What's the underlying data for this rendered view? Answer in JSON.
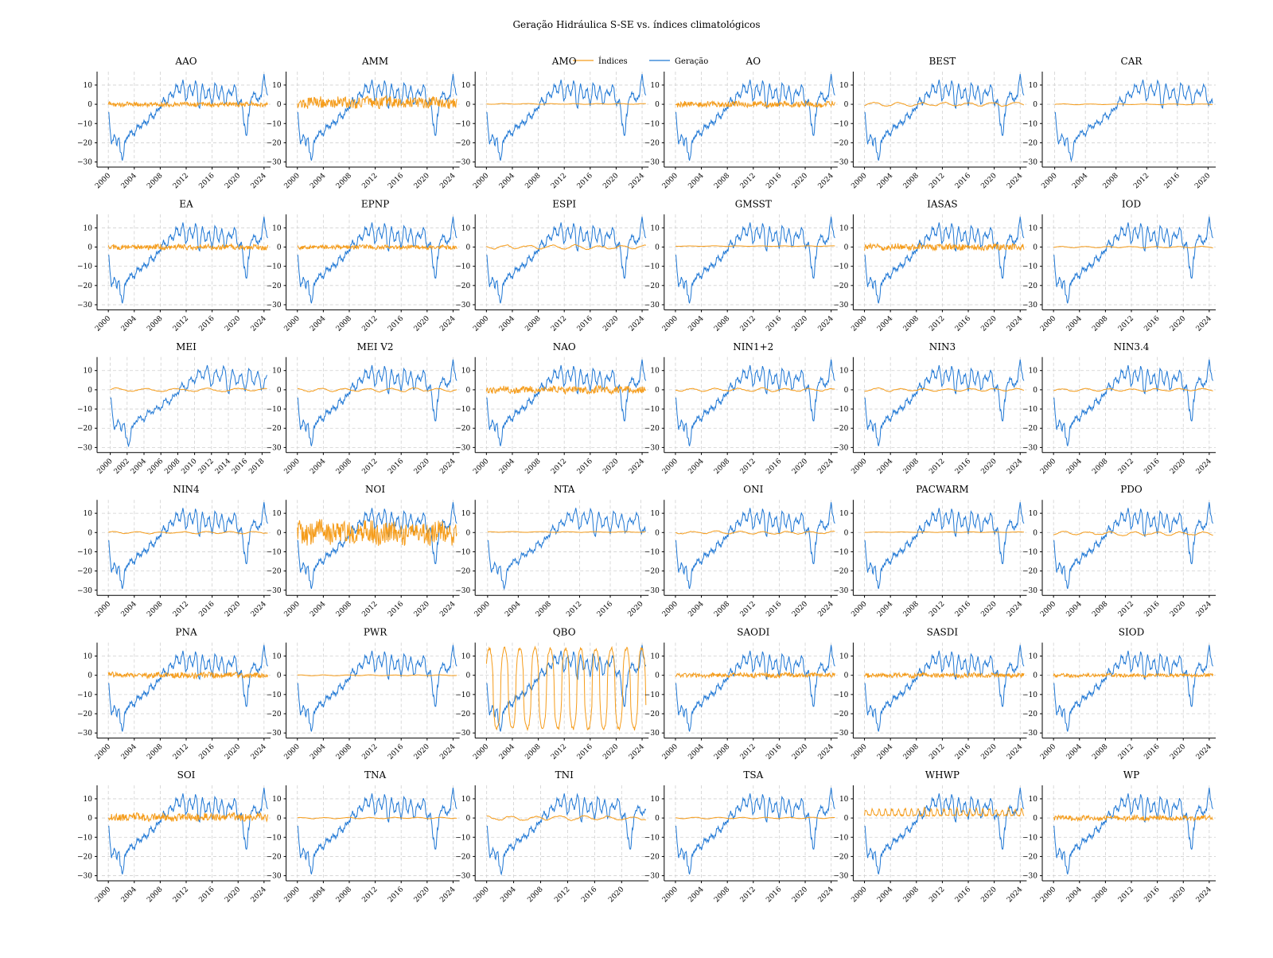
{
  "title": "Geração Hidráulica S-SE vs. índices climatológicos",
  "legend": [
    {
      "label": "Índices",
      "color": "#f59c1a"
    },
    {
      "label": "Geração",
      "color": "#1f77d4"
    }
  ],
  "colors": {
    "indices": "#f59c1a",
    "geracao": "#1f77d4",
    "grid": "#d0d0d0",
    "axis": "#000000"
  },
  "chart_data": {
    "type": "line",
    "layout": "grid 6x6",
    "yticks": [
      -30,
      -20,
      -10,
      0,
      10
    ],
    "ylim": [
      -31,
      17
    ],
    "grid": true,
    "legend_position": "top-center",
    "geracao_anchor": {
      "x": [
        2000.0,
        2000.5,
        2001.0,
        2001.3,
        2001.6,
        2001.9,
        2002.2,
        2002.6,
        2003.0,
        2003.5,
        2004.0,
        2004.5,
        2005.0,
        2005.5,
        2006.0,
        2006.5,
        2007.0,
        2007.5,
        2008.0,
        2008.5,
        2009.0,
        2009.5,
        2010.0,
        2010.5,
        2011.0,
        2011.5,
        2012.0,
        2012.5,
        2013.0,
        2013.5,
        2014.0,
        2014.5,
        2015.0,
        2015.5,
        2016.0,
        2016.5,
        2017.0,
        2017.5,
        2018.0,
        2018.5,
        2019.0,
        2019.5,
        2020.0,
        2020.5,
        2021.0,
        2021.3,
        2021.6,
        2022.0,
        2022.5,
        2023.0,
        2023.5,
        2024.0,
        2024.3,
        2024.6
      ],
      "y": [
        -4,
        -20,
        -16,
        -21,
        -17,
        -25,
        -29,
        -19,
        -17,
        -14,
        -16,
        -11,
        -12,
        -9,
        -10,
        -5,
        -7,
        -3,
        -2,
        3,
        0,
        6,
        4,
        10,
        6,
        12,
        2,
        10,
        5,
        12,
        -2,
        10,
        3,
        8,
        0,
        11,
        3,
        9,
        0,
        7,
        5,
        10,
        0,
        2,
        -11,
        -17,
        -6,
        3,
        6,
        2,
        4,
        15,
        8,
        4
      ]
    },
    "panels": [
      {
        "name": "AAO",
        "xlim": [
          1999,
          2025
        ],
        "xticks": [
          "2000",
          "2004",
          "2008",
          "2012",
          "2016",
          "2020",
          "2024"
        ],
        "index": {
          "style": "noise",
          "amplitude": 1.3,
          "mean": 0
        }
      },
      {
        "name": "AMM",
        "xlim": [
          1999,
          2025
        ],
        "xticks": [
          "2000",
          "2004",
          "2008",
          "2012",
          "2016",
          "2020",
          "2024"
        ],
        "index": {
          "style": "noise",
          "amplitude": 3.2,
          "mean": 1
        }
      },
      {
        "name": "AMO",
        "xlim": [
          1999,
          2025
        ],
        "xticks": [
          "2000",
          "2004",
          "2008",
          "2012",
          "2016",
          "2020",
          "2024"
        ],
        "index": {
          "style": "smooth",
          "amplitude": 0.3,
          "mean": 0.2
        }
      },
      {
        "name": "AO",
        "xlim": [
          1999,
          2025
        ],
        "xticks": [
          "2000",
          "2004",
          "2008",
          "2012",
          "2016",
          "2020",
          "2024"
        ],
        "index": {
          "style": "noise",
          "amplitude": 1.6,
          "mean": 0
        }
      },
      {
        "name": "BEST",
        "xlim": [
          1999,
          2025
        ],
        "xticks": [
          "2000",
          "2004",
          "2008",
          "2012",
          "2016",
          "2020",
          "2024"
        ],
        "index": {
          "style": "smooth",
          "amplitude": 1.4,
          "mean": 0
        }
      },
      {
        "name": "CAR",
        "xlim": [
          1999,
          2021
        ],
        "xticks": [
          "2000",
          "2004",
          "2008",
          "2012",
          "2016",
          "2020"
        ],
        "index": {
          "style": "smooth",
          "amplitude": 0.3,
          "mean": 0
        }
      },
      {
        "name": "EA",
        "xlim": [
          1999,
          2025
        ],
        "xticks": [
          "2000",
          "2004",
          "2008",
          "2012",
          "2016",
          "2020",
          "2024"
        ],
        "index": {
          "style": "noise",
          "amplitude": 1.5,
          "mean": 0
        }
      },
      {
        "name": "EPNP",
        "xlim": [
          1999,
          2025
        ],
        "xticks": [
          "2000",
          "2004",
          "2008",
          "2012",
          "2016",
          "2020",
          "2024"
        ],
        "index": {
          "style": "noise",
          "amplitude": 1.2,
          "mean": 0
        }
      },
      {
        "name": "ESPI",
        "xlim": [
          1999,
          2025
        ],
        "xticks": [
          "2000",
          "2004",
          "2008",
          "2012",
          "2016",
          "2020",
          "2024"
        ],
        "index": {
          "style": "smooth",
          "amplitude": 1.5,
          "mean": 0
        }
      },
      {
        "name": "GMSST",
        "xlim": [
          1999,
          2025
        ],
        "xticks": [
          "2000",
          "2004",
          "2008",
          "2012",
          "2016",
          "2020",
          "2024"
        ],
        "index": {
          "style": "smooth",
          "amplitude": 0.2,
          "mean": 0.5
        }
      },
      {
        "name": "IASAS",
        "xlim": [
          1999,
          2025
        ],
        "xticks": [
          "2000",
          "2004",
          "2008",
          "2012",
          "2016",
          "2020",
          "2024"
        ],
        "index": {
          "style": "noise",
          "amplitude": 1.8,
          "mean": 0
        }
      },
      {
        "name": "IOD",
        "xlim": [
          1999,
          2025
        ],
        "xticks": [
          "2000",
          "2004",
          "2008",
          "2012",
          "2016",
          "2020",
          "2024"
        ],
        "index": {
          "style": "smooth",
          "amplitude": 0.5,
          "mean": 0
        }
      },
      {
        "name": "MEI",
        "xlim": [
          1999,
          2019
        ],
        "xticks": [
          "2000",
          "2002",
          "2004",
          "2006",
          "2008",
          "2010",
          "2012",
          "2014",
          "2016",
          "2018"
        ],
        "index": {
          "style": "smooth",
          "amplitude": 1.2,
          "mean": 0
        }
      },
      {
        "name": "MEI V2",
        "xlim": [
          1999,
          2025
        ],
        "xticks": [
          "2000",
          "2004",
          "2008",
          "2012",
          "2016",
          "2020",
          "2024"
        ],
        "index": {
          "style": "smooth",
          "amplitude": 1.2,
          "mean": 0
        }
      },
      {
        "name": "NAO",
        "xlim": [
          1999,
          2025
        ],
        "xticks": [
          "2000",
          "2004",
          "2008",
          "2012",
          "2016",
          "2020",
          "2024"
        ],
        "index": {
          "style": "noise",
          "amplitude": 2.0,
          "mean": 0
        }
      },
      {
        "name": "NIN1+2",
        "xlim": [
          1999,
          2025
        ],
        "xticks": [
          "2000",
          "2004",
          "2008",
          "2012",
          "2016",
          "2020",
          "2024"
        ],
        "index": {
          "style": "smooth",
          "amplitude": 1.2,
          "mean": 0
        }
      },
      {
        "name": "NIN3",
        "xlim": [
          1999,
          2025
        ],
        "xticks": [
          "2000",
          "2004",
          "2008",
          "2012",
          "2016",
          "2020",
          "2024"
        ],
        "index": {
          "style": "smooth",
          "amplitude": 1.0,
          "mean": 0
        }
      },
      {
        "name": "NIN3.4",
        "xlim": [
          1999,
          2025
        ],
        "xticks": [
          "2000",
          "2004",
          "2008",
          "2012",
          "2016",
          "2020",
          "2024"
        ],
        "index": {
          "style": "smooth",
          "amplitude": 1.0,
          "mean": 0
        }
      },
      {
        "name": "NIN4",
        "xlim": [
          1999,
          2025
        ],
        "xticks": [
          "2000",
          "2004",
          "2008",
          "2012",
          "2016",
          "2020",
          "2024"
        ],
        "index": {
          "style": "smooth",
          "amplitude": 0.8,
          "mean": 0
        }
      },
      {
        "name": "NOI",
        "xlim": [
          1999,
          2025
        ],
        "xticks": [
          "2000",
          "2004",
          "2008",
          "2012",
          "2016",
          "2020",
          "2024"
        ],
        "index": {
          "style": "noise",
          "amplitude": 6.5,
          "mean": 0
        }
      },
      {
        "name": "NTA",
        "xlim": [
          1999,
          2021
        ],
        "xticks": [
          "2000",
          "2004",
          "2008",
          "2012",
          "2016",
          "2020"
        ],
        "index": {
          "style": "smooth",
          "amplitude": 0.3,
          "mean": 0.3
        }
      },
      {
        "name": "ONI",
        "xlim": [
          1999,
          2025
        ],
        "xticks": [
          "2000",
          "2004",
          "2008",
          "2012",
          "2016",
          "2020",
          "2024"
        ],
        "index": {
          "style": "smooth",
          "amplitude": 1.0,
          "mean": 0
        }
      },
      {
        "name": "PACWARM",
        "xlim": [
          1999,
          2025
        ],
        "xticks": [
          "2000",
          "2004",
          "2008",
          "2012",
          "2016",
          "2020",
          "2024"
        ],
        "index": {
          "style": "smooth",
          "amplitude": 0.2,
          "mean": 0.2
        }
      },
      {
        "name": "PDO",
        "xlim": [
          1999,
          2025
        ],
        "xticks": [
          "2000",
          "2004",
          "2008",
          "2012",
          "2016",
          "2020",
          "2024"
        ],
        "index": {
          "style": "smooth",
          "amplitude": 1.3,
          "mean": -0.5
        }
      },
      {
        "name": "PNA",
        "xlim": [
          1999,
          2025
        ],
        "xticks": [
          "2000",
          "2004",
          "2008",
          "2012",
          "2016",
          "2020",
          "2024"
        ],
        "index": {
          "style": "noise",
          "amplitude": 1.6,
          "mean": 0
        }
      },
      {
        "name": "PWR",
        "xlim": [
          1999,
          2025
        ],
        "xticks": [
          "2000",
          "2004",
          "2008",
          "2012",
          "2016",
          "2020",
          "2024"
        ],
        "index": {
          "style": "smooth",
          "amplitude": 0.3,
          "mean": 0
        }
      },
      {
        "name": "QBO",
        "xlim": [
          1999,
          2025
        ],
        "xticks": [
          "2000",
          "2004",
          "2008",
          "2012",
          "2016",
          "2020",
          "2024"
        ],
        "index": {
          "style": "qbo",
          "amplitude": 21,
          "mean": -7
        }
      },
      {
        "name": "SAODI",
        "xlim": [
          1999,
          2025
        ],
        "xticks": [
          "2000",
          "2004",
          "2008",
          "2012",
          "2016",
          "2020",
          "2024"
        ],
        "index": {
          "style": "noise",
          "amplitude": 1.3,
          "mean": 0
        }
      },
      {
        "name": "SASDI",
        "xlim": [
          1999,
          2025
        ],
        "xticks": [
          "2000",
          "2004",
          "2008",
          "2012",
          "2016",
          "2020",
          "2024"
        ],
        "index": {
          "style": "noise",
          "amplitude": 1.3,
          "mean": 0
        }
      },
      {
        "name": "SIOD",
        "xlim": [
          1999,
          2025
        ],
        "xticks": [
          "2000",
          "2004",
          "2008",
          "2012",
          "2016",
          "2020",
          "2024"
        ],
        "index": {
          "style": "noise",
          "amplitude": 1.0,
          "mean": 0
        }
      },
      {
        "name": "SOI",
        "xlim": [
          1999,
          2025
        ],
        "xticks": [
          "2000",
          "2004",
          "2008",
          "2012",
          "2016",
          "2020",
          "2024"
        ],
        "index": {
          "style": "noise",
          "amplitude": 2.2,
          "mean": 0.5
        }
      },
      {
        "name": "TNA",
        "xlim": [
          1999,
          2025
        ],
        "xticks": [
          "2000",
          "2004",
          "2008",
          "2012",
          "2016",
          "2020",
          "2024"
        ],
        "index": {
          "style": "smooth",
          "amplitude": 0.5,
          "mean": 0
        }
      },
      {
        "name": "TNI",
        "xlim": [
          1999,
          2024
        ],
        "xticks": [
          "2000",
          "2004",
          "2008",
          "2012",
          "2016",
          "2020"
        ],
        "index": {
          "style": "smooth",
          "amplitude": 1.6,
          "mean": 0
        }
      },
      {
        "name": "TSA",
        "xlim": [
          1999,
          2025
        ],
        "xticks": [
          "2000",
          "2004",
          "2008",
          "2012",
          "2016",
          "2020",
          "2024"
        ],
        "index": {
          "style": "smooth",
          "amplitude": 0.5,
          "mean": 0
        }
      },
      {
        "name": "WHWP",
        "xlim": [
          1999,
          2025
        ],
        "xticks": [
          "2000",
          "2004",
          "2008",
          "2012",
          "2016",
          "2020",
          "2024"
        ],
        "index": {
          "style": "seasonal",
          "amplitude": 4,
          "mean": 2
        }
      },
      {
        "name": "WP",
        "xlim": [
          1999,
          2025
        ],
        "xticks": [
          "2000",
          "2004",
          "2008",
          "2012",
          "2016",
          "2020",
          "2024"
        ],
        "index": {
          "style": "noise",
          "amplitude": 1.4,
          "mean": 0
        }
      }
    ]
  }
}
